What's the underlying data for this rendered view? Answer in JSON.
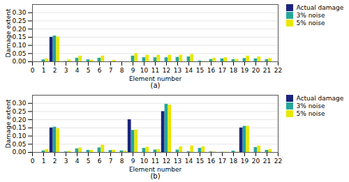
{
  "chart_data": [
    {
      "type": "bar",
      "xlabel": "Element number",
      "ylabel": "Damage extent",
      "annotations": [
        "(a)"
      ],
      "x": [
        1,
        2,
        3,
        4,
        5,
        6,
        7,
        8,
        9,
        10,
        11,
        12,
        13,
        14,
        15,
        16,
        17,
        18,
        19,
        20,
        21
      ],
      "series": [
        {
          "name": "Actual damage",
          "color": "#1a237e",
          "values": [
            0,
            0.15,
            0,
            0,
            0,
            0,
            0,
            0,
            0,
            0,
            0,
            0,
            0,
            0,
            0,
            0,
            0,
            0,
            0,
            0,
            0
          ]
        },
        {
          "name": "3% noise",
          "color": "#26a69a",
          "values": [
            0.012,
            0.158,
            0.002,
            0.022,
            0.012,
            0.022,
            0.001,
            0.0005,
            0.035,
            0.025,
            0.025,
            0.025,
            0.027,
            0.03,
            0.005,
            0.014,
            0.018,
            0.013,
            0.02,
            0.018,
            0.013
          ]
        },
        {
          "name": "5% noise",
          "color": "#e8e800",
          "values": [
            0.018,
            0.152,
            0.012,
            0.035,
            0.01,
            0.035,
            0.008,
            0.0,
            0.05,
            0.04,
            0.04,
            0.04,
            0.04,
            0.045,
            0.002,
            0.022,
            0.025,
            0.015,
            0.035,
            0.03,
            0.02
          ]
        }
      ],
      "xlim": [
        0,
        22
      ],
      "xticks": [
        0,
        1,
        2,
        3,
        4,
        5,
        6,
        7,
        8,
        9,
        10,
        11,
        12,
        13,
        14,
        15,
        16,
        17,
        18,
        19,
        20,
        21,
        22
      ],
      "ylim": [
        0,
        0.35
      ],
      "yticks": [
        {
          "value": 0,
          "label": "0.00"
        },
        0.05,
        {
          "value": 0.1,
          "label": "0.10"
        },
        0.15,
        {
          "value": 0.2,
          "label": "0.20"
        },
        0.25,
        {
          "value": 0.3,
          "label": "0.30"
        }
      ],
      "grid": true,
      "legend": "upper right"
    },
    {
      "type": "bar",
      "xlabel": "Element number",
      "ylabel": "Damage extent",
      "annotations": [
        "(b)"
      ],
      "x": [
        1,
        2,
        3,
        4,
        5,
        6,
        7,
        8,
        9,
        10,
        11,
        12,
        13,
        14,
        15,
        16,
        17,
        18,
        19,
        20,
        21
      ],
      "series": [
        {
          "name": "Actual damage",
          "color": "#1a237e",
          "values": [
            0,
            0.15,
            0,
            0,
            0,
            0,
            0,
            0,
            0.2,
            0,
            0,
            0.25,
            0,
            0,
            0,
            0,
            0,
            0,
            0.15,
            0,
            0
          ]
        },
        {
          "name": "3% noise",
          "color": "#26a69a",
          "values": [
            0.01,
            0.155,
            0.003,
            0.022,
            0.013,
            0.028,
            0.012,
            0.01,
            0.135,
            0.025,
            0.015,
            0.295,
            0.015,
            0.004,
            0.025,
            0.003,
            0.001,
            0.008,
            0.16,
            0.03,
            0.013
          ]
        },
        {
          "name": "5% noise",
          "color": "#e8e800",
          "values": [
            0.018,
            0.145,
            0.008,
            0.028,
            0.013,
            0.045,
            0.014,
            0.008,
            0.138,
            0.032,
            0.018,
            0.29,
            0.035,
            0.04,
            0.035,
            0.003,
            0.002,
            0.002,
            0.16,
            0.04,
            0.018
          ]
        }
      ],
      "xlim": [
        0,
        22
      ],
      "xticks": [
        0,
        1,
        2,
        3,
        4,
        5,
        6,
        7,
        8,
        9,
        10,
        11,
        12,
        13,
        14,
        15,
        16,
        17,
        18,
        19,
        20,
        21,
        22
      ],
      "ylim": [
        0,
        0.35
      ],
      "yticks": [
        {
          "value": 0,
          "label": "0.00"
        },
        0.05,
        {
          "value": 0.1,
          "label": "0.10"
        },
        0.15,
        {
          "value": 0.2,
          "label": "0.20"
        },
        0.25,
        {
          "value": 0.3,
          "label": "0.30"
        }
      ],
      "grid": true,
      "legend": "upper right"
    }
  ]
}
